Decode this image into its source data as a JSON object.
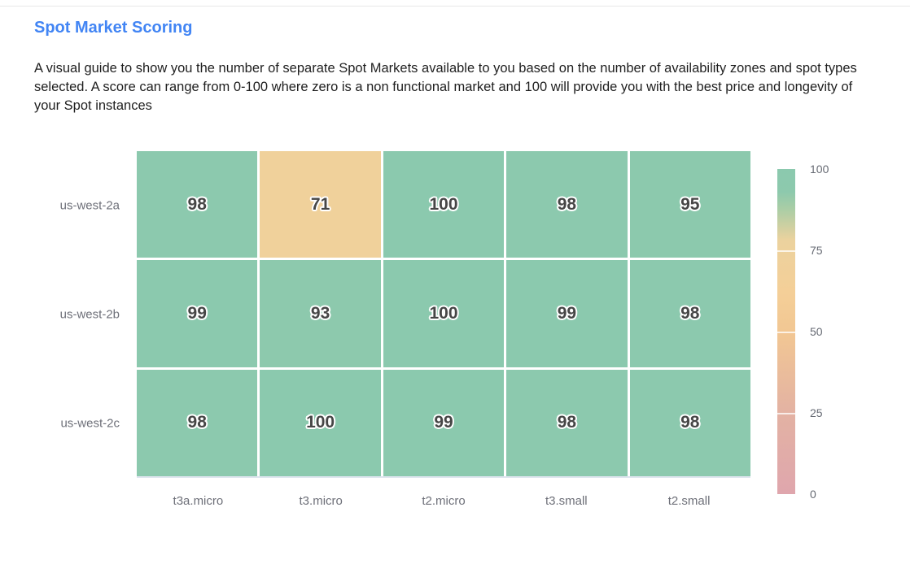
{
  "page": {
    "title": "Spot Market Scoring",
    "description": "A visual guide to show you the number of separate Spot Markets available to you based on the number of availability zones and spot types selected. A score can range from 0-100 where zero is a non functional market and 100 will provide you with the best price and longevity of your Spot instances"
  },
  "colors": {
    "title_accent": "#4285f4",
    "body_text": "#1f1f1f",
    "axis_label": "#6e7079",
    "cell_value_text": "#464646",
    "grid_gap": "#ffffff",
    "grid_bottom_line": "#dde4ee",
    "top_divider": "#e7e7e7"
  },
  "chart_data": {
    "type": "heatmap",
    "title": "Spot Market Scoring",
    "x_categories": [
      "t3a.micro",
      "t3.micro",
      "t2.micro",
      "t3.small",
      "t2.small"
    ],
    "y_categories": [
      "us-west-2a",
      "us-west-2b",
      "us-west-2c"
    ],
    "rows": [
      [
        98,
        71,
        100,
        98,
        95
      ],
      [
        99,
        93,
        100,
        99,
        98
      ],
      [
        98,
        100,
        99,
        98,
        98
      ]
    ],
    "value_range": [
      0,
      100
    ],
    "grid": false,
    "legend_position": "right",
    "legend_ticks": [
      100,
      75,
      50,
      25,
      0
    ],
    "colorscale": [
      {
        "value": 0,
        "color": "#dfa6ad"
      },
      {
        "value": 25,
        "color": "#e3b2a3"
      },
      {
        "value": 50,
        "color": "#f2c793"
      },
      {
        "value": 62,
        "color": "#f4cf98"
      },
      {
        "value": 78,
        "color": "#ecd29e"
      },
      {
        "value": 88,
        "color": "#a8cda6"
      },
      {
        "value": 93,
        "color": "#8dc9ad"
      },
      {
        "value": 100,
        "color": "#8bc9ae"
      }
    ]
  }
}
